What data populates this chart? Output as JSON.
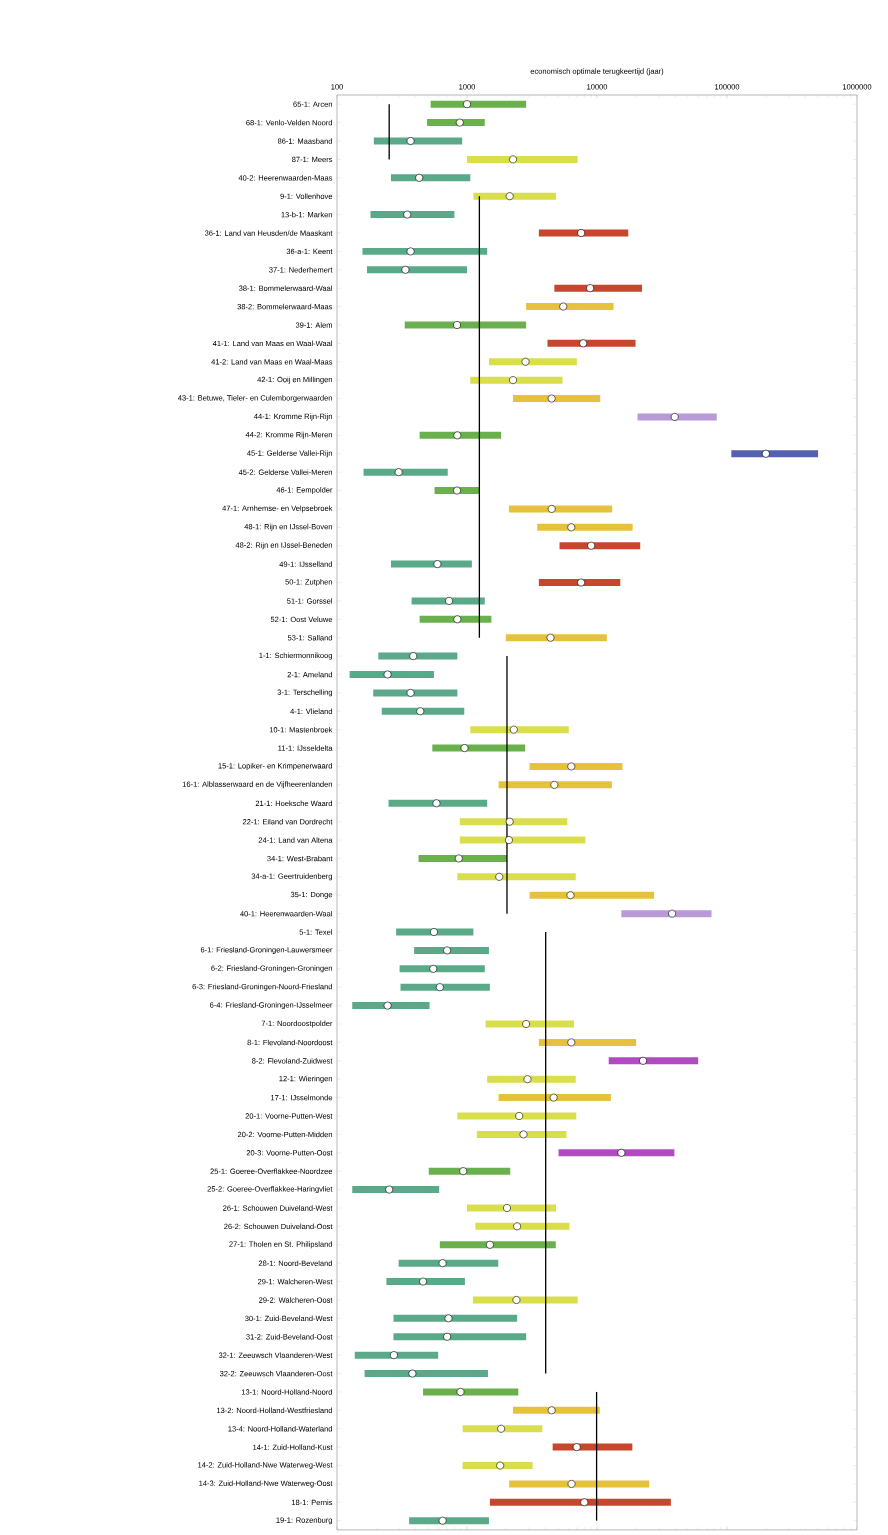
{
  "chart_data": {
    "type": "bar",
    "orientation": "horizontal",
    "log": "x",
    "xlabel": "economisch optimale terugkeertijd (jaar)",
    "xlim": [
      100,
      1000000
    ],
    "xticks": [
      100,
      1000,
      10000,
      100000,
      1000000
    ],
    "categories": [
      "65-1: Arcen",
      "68-1: Venlo-Velden Noord",
      "86-1: Maasband",
      "87-1: Meers",
      "40-2: Heerenwaarden-Maas",
      "9-1: Vollenhove",
      "13-b-1: Marken",
      "36-1: Land van Heusden/de Maaskant",
      "36-a-1: Keent",
      "37-1: Nederhemert",
      "38-1: Bommelerwaard-Waal",
      "38-2: Bommelerwaard-Maas",
      "39-1: Alem",
      "41-1: Land van Maas en Waal-Waal",
      "41-2: Land van Maas en Waal-Maas",
      "42-1: Ooij en Millingen",
      "43-1: Betuwe, Tieler- en Culemborgerwaarden",
      "44-1: Kromme Rijn-Rijn",
      "44-2: Kromme Rijn-Meren",
      "45-1: Gelderse Vallei-Rijn",
      "45-2: Gelderse Vallei-Meren",
      "46-1: Eempolder",
      "47-1: Arnhemse- en Velpsebroek",
      "48-1: Rijn en IJssel-Boven",
      "48-2: Rijn en IJssel-Beneden",
      "49-1: IJsselland",
      "50-1: Zutphen",
      "51-1: Gorssel",
      "52-1: Oost Veluwe",
      "53-1: Salland",
      "1-1: Schiermonnikoog",
      "2-1: Ameland",
      "3-1: Terschelling",
      "4-1: Vlieland",
      "10-1: Mastenbroek",
      "11-1: IJsseldelta",
      "15-1: Lopiker- en Krimpenerwaard",
      "16-1: Alblasserwaard en de Vijfheerenlanden",
      "21-1: Hoeksche Waard",
      "22-1: Eiland van Dordrecht",
      "24-1: Land van Altena",
      "34-1: West-Brabant",
      "34-a-1: Geertruidenberg",
      "35-1: Donge",
      "40-1: Heerenwaarden-Waal",
      "5-1: Texel",
      "6-1: Friesland-Groningen-Lauwersmeer",
      "6-2: Friesland-Groningen-Groningen",
      "6-3: Friesland-Groningen-Noord-Friesland",
      "6-4: Friesland-Groningen-IJsselmeer",
      "7-1: Noordoostpolder",
      "8-1: Flevoland-Noordoost",
      "8-2: Flevoland-Zuidwest",
      "12-1: Wieringen",
      "17-1: IJsselmonde",
      "20-1: Voorne-Putten-West",
      "20-2: Voorne-Putten-Midden",
      "20-3: Voorne-Putten-Oost",
      "25-1: Goeree-Overflakkee-Noordzee",
      "25-2: Goeree-Overflakkee-Haringvliet",
      "26-1: Schouwen Duiveland-West",
      "26-2: Schouwen Duiveland-Oost",
      "27-1: Tholen en St. Philipsland",
      "28-1: Noord-Beveland",
      "29-1: Walcheren-West",
      "29-2: Walcheren-Oost",
      "30-1: Zuid-Beveland-West",
      "31-2: Zuid-Beveland-Oost",
      "32-1: Zeeuwsch Vlaanderen-West",
      "32-2: Zeeuwsch Vlaanderen-Oost",
      "13-1: Noord-Holland-Noord",
      "13-2: Noord-Holland-Westfriesland",
      "13-4: Noord-Holland-Waterland",
      "14-1: Zuid-Holland-Kust",
      "14-2: Zuid-Holland-Nwe Waterweg-West",
      "14-3: Zuid-Holland-Nwe Waterweg-Oost",
      "18-1: Pernis",
      "19-1: Rozenburg"
    ],
    "series": [
      {
        "base": [
          525,
          493,
          192,
          1000,
          260,
          1120,
          181,
          3570,
          157,
          170,
          4700,
          2850,
          332,
          4160,
          1475,
          1060,
          2260,
          20500,
          432,
          108000,
          160,
          563,
          2100,
          3470,
          5150,
          260,
          3570,
          375,
          432,
          1990,
          208,
          125,
          190,
          221,
          1060,
          541,
          3030,
          1750,
          249,
          880,
          880,
          424,
          843,
          3030,
          15400,
          285,
          392,
          303,
          308,
          131,
          1390,
          3570,
          12300,
          1430,
          1750,
          843,
          1190,
          5060,
          508,
          131,
          1000,
          1160,
          618,
          298,
          240,
          1110,
          272,
          272,
          137,
          163,
          459,
          2260,
          925,
          4560,
          925,
          2110,
          1500,
          359
        ],
        "values": [
          2325,
          877,
          726,
          6100,
          800,
          3720,
          619,
          13830,
          1273,
          830,
          17500,
          10550,
          2518,
          15640,
          5525,
          4370,
          8340,
          62900,
          1398,
          394000,
          551,
          682,
          11000,
          15330,
          16350,
          830,
          11530,
          995,
          1108,
          9910,
          635,
          432,
          653,
          732,
          5010,
          2259,
          12670,
          11250,
          1181,
          5030,
          7250,
          1606,
          6017,
          24470,
          60600,
          835,
          1083,
          1067,
          1192,
          384,
          5260,
          16430,
          47700,
          5430,
          11050,
          6087,
          4630,
          34340,
          1642,
          480,
          3840,
          4980,
          4202,
          1442,
          724,
          5990,
          2158,
          2578,
          463,
          1287,
          2021,
          8240,
          2875,
          14140,
          2275,
          23090,
          35500,
          1116
        ],
        "colors": [
          "#6ab04c",
          "#6ab04c",
          "#5aaa8a",
          "#d9de4c",
          "#5aaa8a",
          "#d9de4c",
          "#5aaa8a",
          "#c8452e",
          "#5aaa8a",
          "#5aaa8a",
          "#c8452e",
          "#e6c23c",
          "#6ab04c",
          "#c8452e",
          "#d9de4c",
          "#d9de4c",
          "#e6c23c",
          "#b89ad8",
          "#6ab04c",
          "#5560b0",
          "#5aaa8a",
          "#6ab04c",
          "#e6c23c",
          "#e6c23c",
          "#c8452e",
          "#5aaa8a",
          "#c8452e",
          "#5aaa8a",
          "#6ab04c",
          "#e6c23c",
          "#5aaa8a",
          "#5aaa8a",
          "#5aaa8a",
          "#5aaa8a",
          "#d9de4c",
          "#6ab04c",
          "#e6c23c",
          "#e6c23c",
          "#5aaa8a",
          "#d9de4c",
          "#d9de4c",
          "#6ab04c",
          "#d9de4c",
          "#e6c23c",
          "#b89ad8",
          "#5aaa8a",
          "#5aaa8a",
          "#5aaa8a",
          "#5aaa8a",
          "#5aaa8a",
          "#d9de4c",
          "#e6c23c",
          "#b04cc0",
          "#d9de4c",
          "#e6c23c",
          "#d9de4c",
          "#d9de4c",
          "#b04cc0",
          "#6ab04c",
          "#5aaa8a",
          "#d9de4c",
          "#d9de4c",
          "#6ab04c",
          "#5aaa8a",
          "#5aaa8a",
          "#d9de4c",
          "#5aaa8a",
          "#5aaa8a",
          "#5aaa8a",
          "#5aaa8a",
          "#6ab04c",
          "#e6c23c",
          "#d9de4c",
          "#c8452e",
          "#d9de4c",
          "#e6c23c",
          "#c8452e",
          "#5aaa8a"
        ]
      },
      {
        "type": "scatter",
        "marker": "circle",
        "color": "#ffffff",
        "values": [
          1000,
          880,
          368,
          2260,
          429,
          2130,
          347,
          7550,
          368,
          336,
          8850,
          5500,
          838,
          7830,
          2820,
          2260,
          4480,
          39600,
          843,
          199000,
          298,
          838,
          4480,
          6340,
          9020,
          592,
          7550,
          728,
          843,
          4390,
          386,
          245,
          368,
          437,
          2290,
          957,
          6340,
          4700,
          582,
          2130,
          2100,
          865,
          1770,
          6250,
          37800,
          557,
          703,
          550,
          618,
          245,
          2850,
          6340,
          22600,
          2920,
          4640,
          2520,
          2720,
          15400,
          935,
          252,
          2030,
          2430,
          1500,
          649,
          459,
          2400,
          720,
          703,
          274,
          380,
          891,
          4480,
          1830,
          6980,
          1800,
          6370,
          7980,
          649
        ]
      },
      {
        "type": "line",
        "line_style": "solid",
        "color": "#000000",
        "values": [
          252,
          252,
          252,
          252,
          null,
          null,
          null,
          null,
          null,
          null,
          null,
          null,
          null,
          null,
          null,
          null,
          null,
          null,
          null,
          null,
          null,
          null,
          null,
          null,
          null,
          null,
          null,
          null,
          null,
          null,
          null,
          null,
          null,
          null,
          null,
          null,
          null,
          null,
          null,
          null,
          null,
          null,
          null,
          null,
          null,
          null,
          null,
          null,
          null,
          null,
          null,
          null,
          null,
          null,
          null,
          null,
          null,
          null,
          null,
          null,
          null,
          null,
          null,
          null,
          null,
          null,
          null,
          null,
          null,
          null,
          null,
          null,
          null,
          null,
          null,
          null,
          null,
          null
        ]
      },
      {
        "type": "line",
        "line_style": "solid",
        "color": "#000000",
        "values": [
          null,
          null,
          null,
          null,
          null,
          1245,
          1245,
          1245,
          1245,
          1245,
          1245,
          1245,
          1245,
          1245,
          1245,
          1245,
          1245,
          1245,
          1245,
          1245,
          1245,
          1245,
          1245,
          1245,
          1245,
          1245,
          1245,
          1245,
          1245,
          1245,
          null,
          null,
          null,
          null,
          null,
          null,
          null,
          null,
          null,
          null,
          null,
          null,
          null,
          null,
          null,
          null,
          null,
          null,
          null,
          null,
          null,
          null,
          null,
          null,
          null,
          null,
          null,
          null,
          null,
          null,
          null,
          null,
          null,
          null,
          null,
          null,
          null,
          null,
          null,
          null,
          null,
          null,
          null,
          null,
          null,
          null,
          null,
          null
        ]
      },
      {
        "type": "line",
        "line_style": "solid",
        "color": "#000000",
        "values": [
          null,
          null,
          null,
          null,
          null,
          null,
          null,
          null,
          null,
          null,
          null,
          null,
          null,
          null,
          null,
          null,
          null,
          null,
          null,
          null,
          null,
          null,
          null,
          null,
          null,
          null,
          null,
          null,
          null,
          null,
          2030,
          2030,
          2030,
          2030,
          2030,
          2030,
          2030,
          2030,
          2030,
          2030,
          2030,
          2030,
          2030,
          2030,
          2030,
          null,
          null,
          null,
          null,
          null,
          null,
          null,
          null,
          null,
          null,
          null,
          null,
          null,
          null,
          null,
          null,
          null,
          null,
          null,
          null,
          null,
          null,
          null,
          null,
          null,
          null,
          null,
          null,
          null,
          null,
          null,
          null,
          null
        ]
      },
      {
        "type": "line",
        "line_style": "solid",
        "color": "#000000",
        "values": [
          null,
          null,
          null,
          null,
          null,
          null,
          null,
          null,
          null,
          null,
          null,
          null,
          null,
          null,
          null,
          null,
          null,
          null,
          null,
          null,
          null,
          null,
          null,
          null,
          null,
          null,
          null,
          null,
          null,
          null,
          null,
          null,
          null,
          null,
          null,
          null,
          null,
          null,
          null,
          null,
          null,
          null,
          null,
          null,
          null,
          4030,
          4030,
          4030,
          4030,
          4030,
          4030,
          4030,
          4030,
          4030,
          4030,
          4030,
          4030,
          4030,
          4030,
          4030,
          4030,
          4030,
          4030,
          4030,
          4030,
          4030,
          4030,
          4030,
          4030,
          4030,
          null,
          null,
          null,
          null,
          null,
          null,
          null,
          null
        ]
      },
      {
        "type": "line",
        "line_style": "solid",
        "color": "#000000",
        "values": [
          null,
          null,
          null,
          null,
          null,
          null,
          null,
          null,
          null,
          null,
          null,
          null,
          null,
          null,
          null,
          null,
          null,
          null,
          null,
          null,
          null,
          null,
          null,
          null,
          null,
          null,
          null,
          null,
          null,
          null,
          null,
          null,
          null,
          null,
          null,
          null,
          null,
          null,
          null,
          null,
          null,
          null,
          null,
          null,
          null,
          null,
          null,
          null,
          null,
          null,
          null,
          null,
          null,
          null,
          null,
          null,
          null,
          null,
          null,
          null,
          null,
          null,
          null,
          null,
          null,
          null,
          null,
          null,
          null,
          null,
          9930,
          9930,
          9930,
          9930,
          9930,
          9930,
          9930,
          9930
        ]
      }
    ]
  }
}
